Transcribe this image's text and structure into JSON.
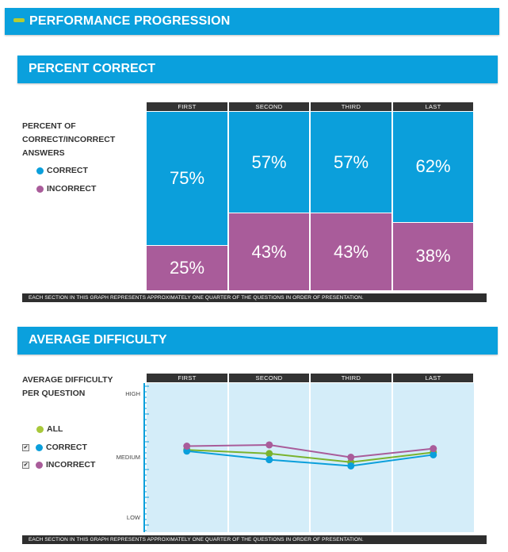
{
  "header": {
    "title": "PERFORMANCE PROGRESSION"
  },
  "sections": [
    {
      "title": "PERCENT CORRECT"
    },
    {
      "title": "AVERAGE DIFFICULTY"
    }
  ],
  "colors": {
    "correct": "#0b9fdb",
    "incorrect": "#a95c9a",
    "all": "#7ab32e",
    "accent": "#b5cc32",
    "banner": "#0aa0dd"
  },
  "legend1": {
    "title_lines": [
      "PERCENT OF",
      "CORRECT/INCORRECT",
      "ANSWERS"
    ],
    "correct": "CORRECT",
    "incorrect": "INCORRECT"
  },
  "legend2": {
    "title_lines": [
      "AVERAGE DIFFICULTY",
      "PER QUESTION"
    ],
    "all": "ALL",
    "correct": "CORRECT",
    "incorrect": "INCORRECT",
    "correct_checked": true,
    "incorrect_checked": true,
    "check_mark": "✔"
  },
  "footnote": "EACH SECTION IN THIS GRAPH REPRESENTS APPROXIMATELY ONE QUARTER OF THE QUESTIONS IN ORDER OF PRESENTATION.",
  "chart_data": [
    {
      "type": "bar",
      "stacked": true,
      "categories": [
        "FIRST",
        "SECOND",
        "THIRD",
        "LAST"
      ],
      "series": [
        {
          "name": "CORRECT",
          "values": [
            75,
            57,
            57,
            62
          ],
          "labels": [
            "75%",
            "57%",
            "57%",
            "62%"
          ]
        },
        {
          "name": "INCORRECT",
          "values": [
            25,
            43,
            43,
            38
          ],
          "labels": [
            "25%",
            "43%",
            "43%",
            "38%"
          ]
        }
      ],
      "ylim": [
        0,
        100
      ]
    },
    {
      "type": "line",
      "categories": [
        "FIRST",
        "SECOND",
        "THIRD",
        "LAST"
      ],
      "y_ticks": [
        "HIGH",
        "MEDIUM",
        "LOW"
      ],
      "ylim": [
        0,
        1
      ],
      "series": [
        {
          "name": "ALL",
          "values": [
            0.55,
            0.52,
            0.45,
            0.53
          ]
        },
        {
          "name": "CORRECT",
          "values": [
            0.54,
            0.47,
            0.42,
            0.51
          ]
        },
        {
          "name": "INCORRECT",
          "values": [
            0.58,
            0.59,
            0.49,
            0.56
          ]
        }
      ]
    }
  ]
}
